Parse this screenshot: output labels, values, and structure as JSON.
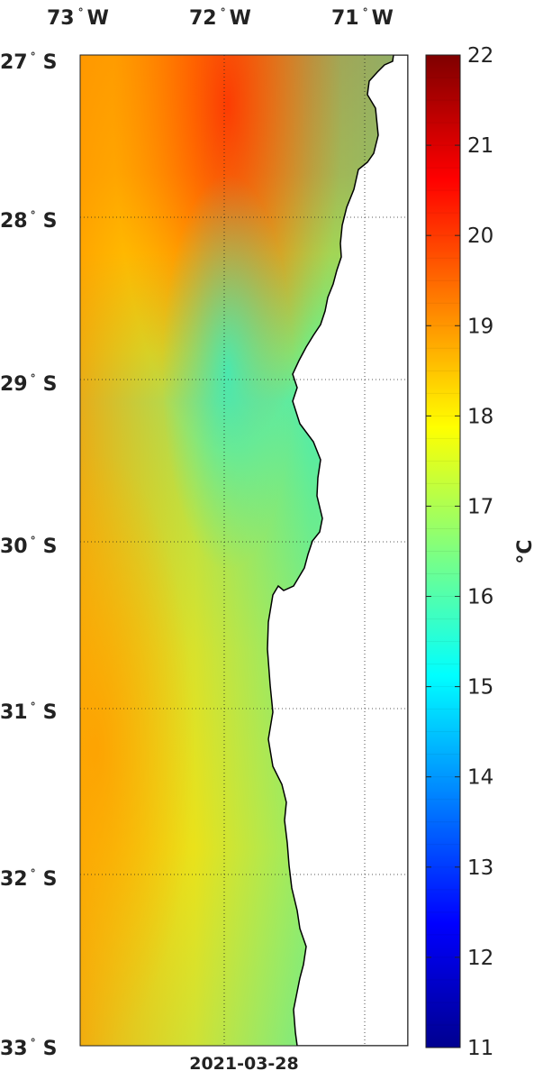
{
  "map": {
    "date": "2021-03-28",
    "unit_label": "°C",
    "lon_ticks": [
      {
        "deg": "73",
        "hemi": "W"
      },
      {
        "deg": "72",
        "hemi": "W"
      },
      {
        "deg": "71",
        "hemi": "W"
      }
    ],
    "lat_ticks": [
      {
        "deg": "27",
        "hemi": "S"
      },
      {
        "deg": "28",
        "hemi": "S"
      },
      {
        "deg": "29",
        "hemi": "S"
      },
      {
        "deg": "30",
        "hemi": "S"
      },
      {
        "deg": "31",
        "hemi": "S"
      },
      {
        "deg": "32",
        "hemi": "S"
      },
      {
        "deg": "33",
        "hemi": "S"
      }
    ],
    "lon_range": [
      -73,
      -70.7
    ],
    "lat_range": [
      -33,
      -27
    ],
    "gridlines": true,
    "land_color": "#ffffff",
    "coast_color": "#000000"
  },
  "colorbar": {
    "colormap": "jet",
    "min": 11,
    "max": 22,
    "ticks": [
      "11",
      "12",
      "13",
      "14",
      "15",
      "16",
      "17",
      "18",
      "19",
      "20",
      "21",
      "22"
    ]
  }
}
